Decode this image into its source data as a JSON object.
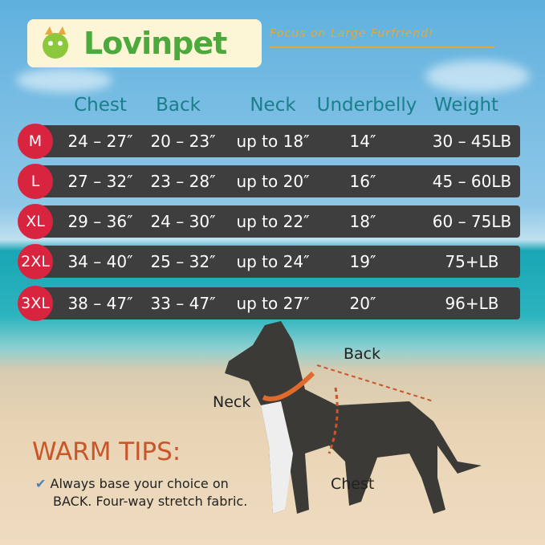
{
  "brand": {
    "name": "Lovinpet",
    "tagline": "Focus on Large Furfriend!"
  },
  "headers": [
    "Chest",
    "Back",
    "Neck",
    "Underbelly",
    "Weight"
  ],
  "rows": [
    {
      "size": "M",
      "cells": [
        "24 – 27″",
        "20 – 23″",
        "up to 18″",
        "14″",
        "30 – 45LB"
      ]
    },
    {
      "size": "L",
      "cells": [
        "27 – 32″",
        "23 – 28″",
        "up to 20″",
        "16″",
        "45 – 60LB"
      ]
    },
    {
      "size": "XL",
      "cells": [
        "29 – 36″",
        "24 – 30″",
        "up to 22″",
        "18″",
        "60 – 75LB"
      ]
    },
    {
      "size": "2XL",
      "cells": [
        "34 – 40″",
        "25 – 32″",
        "up to 24″",
        "19″",
        "75+LB"
      ]
    },
    {
      "size": "3XL",
      "cells": [
        "38 – 47″",
        "33 – 47″",
        "up to 27″",
        "20″",
        "96+LB"
      ]
    }
  ],
  "diagram": {
    "back": "Back",
    "neck": "Neck",
    "chest": "Chest"
  },
  "tips": {
    "title": "WARM TIPS:",
    "line1": "Always base your choice on",
    "line2": "BACK. Four-way stretch fabric."
  },
  "colors": {
    "size_badge": "#d8243f",
    "row": "#3e3e3e",
    "header": "#1a7f8a",
    "tips": "#c9552a",
    "brand": "#4caa3c"
  }
}
